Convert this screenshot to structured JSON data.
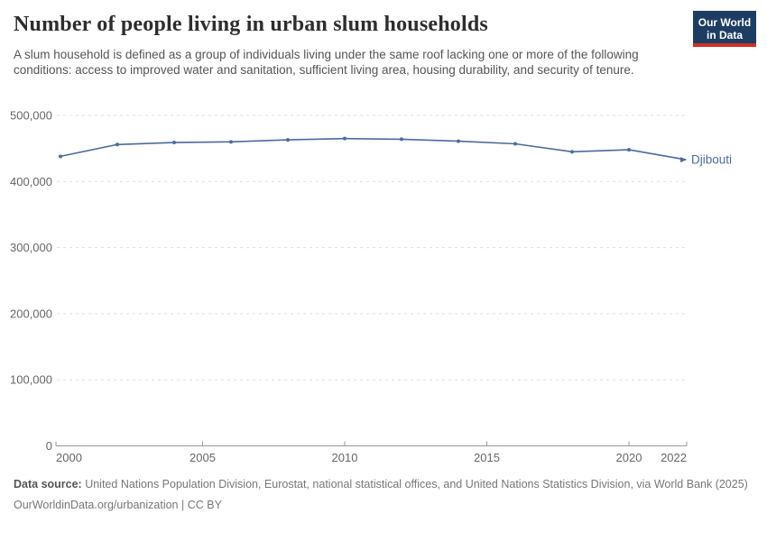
{
  "header": {
    "title": "Number of people living in urban slum households",
    "subtitle": "A slum household is defined as a group of individuals living under the same roof lacking one or more of the following conditions: access to improved water and sanitation, sufficient living area, housing durability, and security of tenure.",
    "logo": {
      "line1": "Our World",
      "line2": "in Data",
      "bg_color": "#1d3d63",
      "accent_color": "#cf2e27"
    }
  },
  "chart_data": {
    "type": "line",
    "title": "Number of people living in urban slum households",
    "x": [
      2000,
      2002,
      2004,
      2006,
      2008,
      2010,
      2012,
      2014,
      2016,
      2018,
      2020,
      2022
    ],
    "series": [
      {
        "name": "Djibouti",
        "color": "#4c6a9c",
        "values": [
          438000,
          456000,
          459000,
          460000,
          463000,
          465000,
          464000,
          461000,
          457000,
          445000,
          448000,
          433000
        ]
      }
    ],
    "xlim": [
      2000,
      2022
    ],
    "ylim": [
      0,
      500000
    ],
    "x_ticks": [
      2000,
      2005,
      2010,
      2015,
      2020,
      2022
    ],
    "y_ticks": [
      0,
      100000,
      200000,
      300000,
      400000,
      500000
    ],
    "grid": "horizontal-dashed",
    "legend_position": "end-of-line",
    "end_label": "Djibouti",
    "colors": {
      "gridline": "#dddddd",
      "axis": "#999999",
      "tick_label": "#666666"
    }
  },
  "footer": {
    "datasource_label": "Data source:",
    "datasource_text": " United Nations Population Division, Eurostat, national statistical offices, and United Nations Statistics Division, via World Bank (2025)",
    "link_text": "OurWorldinData.org/urbanization",
    "license_text": " | CC BY"
  }
}
